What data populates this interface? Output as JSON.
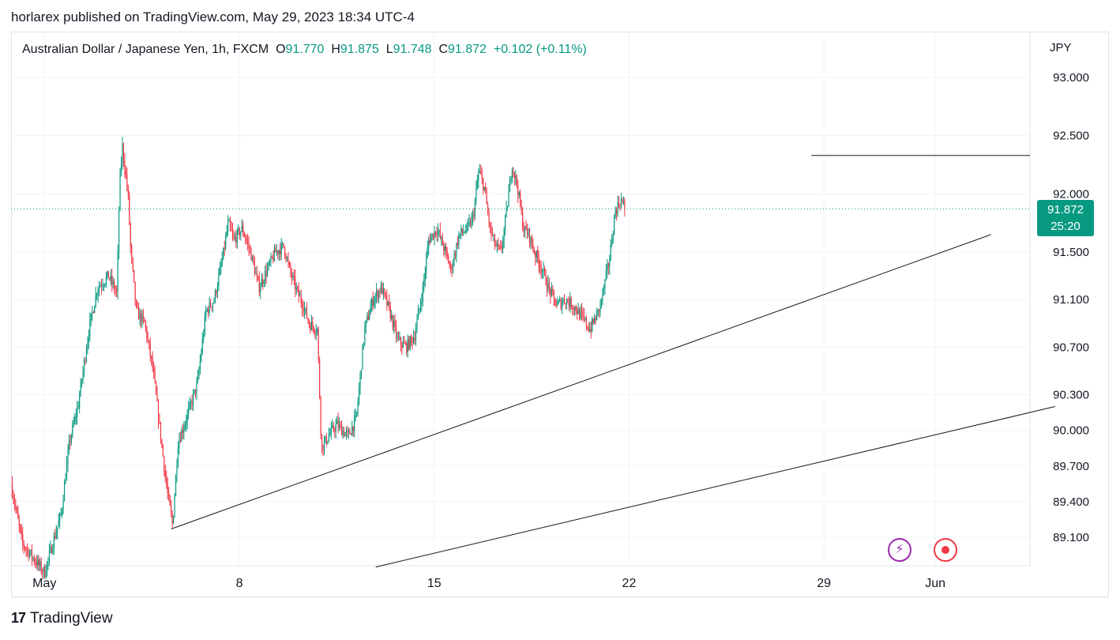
{
  "header": {
    "published_line": "horlarex published on TradingView.com, May 29, 2023 18:34 UTC-4"
  },
  "legend": {
    "symbol": "Australian Dollar / Japanese Yen, 1h, FXCM",
    "open_label": "O",
    "open": "91.770",
    "high_label": "H",
    "high": "91.875",
    "low_label": "L",
    "low": "91.748",
    "close_label": "C",
    "close": "91.872",
    "change": "+0.102 (+0.11%)"
  },
  "price_badge": {
    "price": "91.872",
    "countdown": "25:20"
  },
  "footer": {
    "brand": "TradingView",
    "logo_glyph": "17"
  },
  "icons": {
    "lightning": "lightning-icon",
    "record": "record-icon"
  },
  "colors": {
    "up": "#089981",
    "down": "#f23645",
    "line": "#131722",
    "grid": "#f0f3fa"
  },
  "chart_data": {
    "type": "candlestick",
    "currency": "JPY",
    "y_ticks": [
      {
        "value": 93.0,
        "label": "93.000"
      },
      {
        "value": 92.5,
        "label": "92.500"
      },
      {
        "value": 92.0,
        "label": "92.000"
      },
      {
        "value": 91.5,
        "label": "91.500"
      },
      {
        "value": 91.1,
        "label": "91.100"
      },
      {
        "value": 90.7,
        "label": "90.700"
      },
      {
        "value": 90.3,
        "label": "90.300"
      },
      {
        "value": 90.0,
        "label": "90.000"
      },
      {
        "value": 89.7,
        "label": "89.700"
      },
      {
        "value": 89.4,
        "label": "89.400"
      },
      {
        "value": 89.1,
        "label": "89.100"
      }
    ],
    "x_ticks": [
      {
        "day": 1,
        "label": "May"
      },
      {
        "day": 8,
        "label": "8"
      },
      {
        "day": 15,
        "label": "15"
      },
      {
        "day": 22,
        "label": "22"
      },
      {
        "day": 29,
        "label": "29"
      },
      {
        "day": 33,
        "label": "Jun"
      }
    ],
    "x_range_days": [
      -0.2,
      36.4
    ],
    "last_price": 91.872,
    "horizontal_lines": [
      {
        "name": "resistance",
        "y": 92.33,
        "x_start": 28.55,
        "x_end": 36.4
      }
    ],
    "trend_lines": [
      {
        "name": "support-trendline-1",
        "x1": 5.55,
        "y1": 89.17,
        "x2": 35.0,
        "y2": 91.65
      },
      {
        "name": "support-trendline-2",
        "x1": 12.9,
        "y1": 88.85,
        "x2": 37.3,
        "y2": 90.2
      }
    ],
    "path_anchors": [
      [
        -0.2,
        89.55
      ],
      [
        0.2,
        89.05
      ],
      [
        1.0,
        88.8
      ],
      [
        1.6,
        89.3
      ],
      [
        1.9,
        89.9
      ],
      [
        2.2,
        90.2
      ],
      [
        2.6,
        90.85
      ],
      [
        2.9,
        91.2
      ],
      [
        3.3,
        91.3
      ],
      [
        3.6,
        91.15
      ],
      [
        3.7,
        92.1
      ],
      [
        3.8,
        92.4
      ],
      [
        4.0,
        92.0
      ],
      [
        4.1,
        91.5
      ],
      [
        4.3,
        91.0
      ],
      [
        4.6,
        90.9
      ],
      [
        4.9,
        90.5
      ],
      [
        5.1,
        90.1
      ],
      [
        5.4,
        89.5
      ],
      [
        5.6,
        89.2
      ],
      [
        5.8,
        89.9
      ],
      [
        6.1,
        90.1
      ],
      [
        6.5,
        90.4
      ],
      [
        6.8,
        91.0
      ],
      [
        7.1,
        91.1
      ],
      [
        7.4,
        91.45
      ],
      [
        7.6,
        91.75
      ],
      [
        7.8,
        91.6
      ],
      [
        8.1,
        91.7
      ],
      [
        8.4,
        91.5
      ],
      [
        8.7,
        91.2
      ],
      [
        9.0,
        91.35
      ],
      [
        9.3,
        91.5
      ],
      [
        9.6,
        91.55
      ],
      [
        9.8,
        91.35
      ],
      [
        10.1,
        91.15
      ],
      [
        10.3,
        91.05
      ],
      [
        10.5,
        90.9
      ],
      [
        10.8,
        90.85
      ],
      [
        10.95,
        89.85
      ],
      [
        11.2,
        89.95
      ],
      [
        11.5,
        90.05
      ],
      [
        11.9,
        89.95
      ],
      [
        12.2,
        90.1
      ],
      [
        12.5,
        90.85
      ],
      [
        12.8,
        91.1
      ],
      [
        13.1,
        91.2
      ],
      [
        13.4,
        91.0
      ],
      [
        13.7,
        90.75
      ],
      [
        14.0,
        90.7
      ],
      [
        14.3,
        90.8
      ],
      [
        14.6,
        91.2
      ],
      [
        14.8,
        91.6
      ],
      [
        15.1,
        91.7
      ],
      [
        15.4,
        91.5
      ],
      [
        15.6,
        91.35
      ],
      [
        15.9,
        91.65
      ],
      [
        16.2,
        91.7
      ],
      [
        16.4,
        91.8
      ],
      [
        16.6,
        92.2
      ],
      [
        16.8,
        92.05
      ],
      [
        17.0,
        91.7
      ],
      [
        17.2,
        91.55
      ],
      [
        17.4,
        91.5
      ],
      [
        17.6,
        91.85
      ],
      [
        17.8,
        92.25
      ],
      [
        18.0,
        92.05
      ],
      [
        18.2,
        91.7
      ],
      [
        18.4,
        91.65
      ],
      [
        18.6,
        91.5
      ],
      [
        18.8,
        91.4
      ],
      [
        19.1,
        91.2
      ],
      [
        19.4,
        91.05
      ],
      [
        19.7,
        91.1
      ],
      [
        20.0,
        91.05
      ],
      [
        20.3,
        90.95
      ],
      [
        20.6,
        90.85
      ],
      [
        20.9,
        91.0
      ],
      [
        21.1,
        91.2
      ],
      [
        21.3,
        91.45
      ],
      [
        21.5,
        91.85
      ],
      [
        21.7,
        91.95
      ],
      [
        21.85,
        91.88
      ]
    ]
  }
}
